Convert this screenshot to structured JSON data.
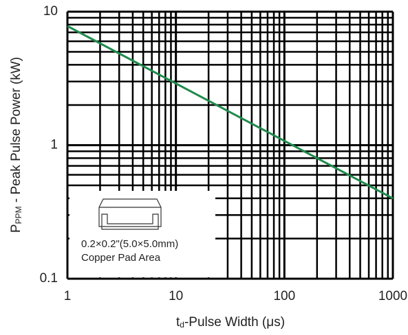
{
  "chart_data": {
    "type": "line",
    "x_log": true,
    "y_log": true,
    "grid": true,
    "x_label": {
      "main": "t",
      "sub": "d",
      "rest": "-Pulse Width (μs)"
    },
    "y_label": {
      "main": "P",
      "sub": "PPM",
      "rest": " - Peak Pulse Power (kW)"
    },
    "annotation": [
      "0.2×0.2\"(5.0×5.0mm)",
      "Copper Pad Area"
    ],
    "x": [
      1,
      1000
    ],
    "series": [
      {
        "color": "#1f8a4c",
        "values": [
          7.8,
          0.4
        ]
      }
    ],
    "xlim": [
      1,
      1000
    ],
    "xticks": [
      1,
      10,
      100,
      1000
    ],
    "ylim": [
      0.1,
      10
    ],
    "yticks": [
      0.1,
      1,
      10
    ],
    "xminorticks": [
      2,
      3,
      4,
      5,
      6,
      7,
      8,
      9,
      20,
      30,
      40,
      50,
      60,
      70,
      80,
      90,
      200,
      300,
      400,
      500,
      600,
      700,
      800,
      900
    ],
    "yminorticks": [
      0.2,
      0.3,
      0.4,
      0.5,
      0.6,
      0.7,
      0.8,
      0.9,
      2,
      3,
      4,
      5,
      6,
      7,
      8,
      9
    ]
  }
}
